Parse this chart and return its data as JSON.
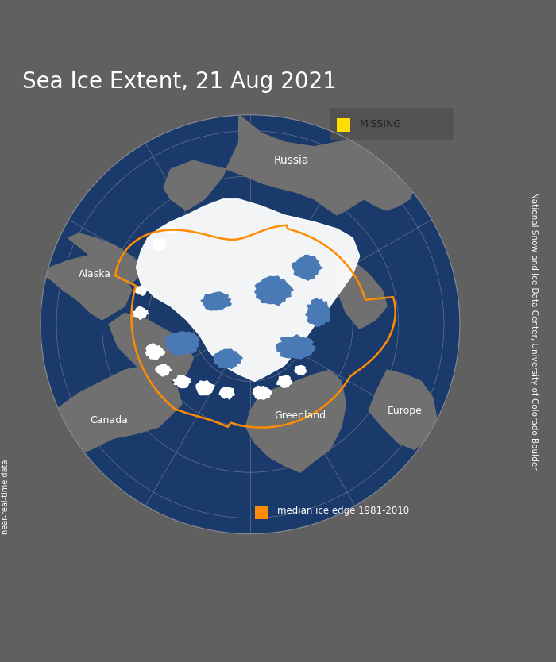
{
  "title": "Sea Ice Extent, 21 Aug 2021",
  "title_color": "#ffffff",
  "title_fontsize": 20,
  "background_color": "#606060",
  "map_bg_color": "#1a3a6b",
  "land_color": "#707070",
  "ice_color": "#ffffff",
  "ice_concentration_color": "#4a7ab5",
  "median_edge_color": "#ff8c00",
  "missing_color": "#ffdd00",
  "grid_color": "#b0b0b0",
  "text_color": "#ffffff",
  "legend_bg": "#505050",
  "label_russia": "Russia",
  "label_alaska": "Alaska",
  "label_canada": "Canada",
  "label_greenland": "Greenland",
  "label_europe": "Europe",
  "legend_missing": "MISSING",
  "legend_median": "median ice edge 1981-2010",
  "right_text": "National Snow and Ice Data Center, University of Colorado Boulder",
  "left_text": "near-real-time data",
  "fig_width": 7.0,
  "fig_height": 8.34
}
